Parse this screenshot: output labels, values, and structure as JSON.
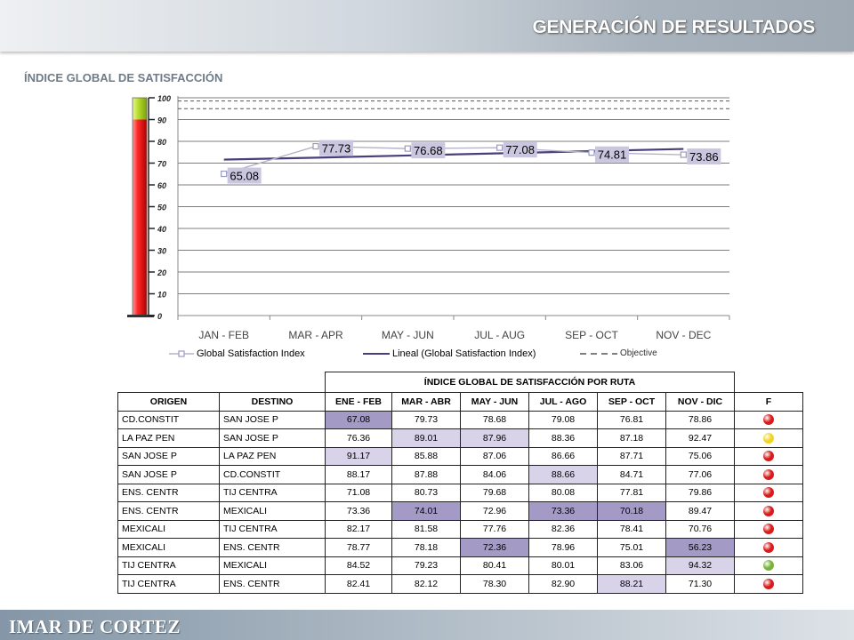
{
  "header": {
    "title": "GENERACIÓN DE RESULTADOS"
  },
  "section": {
    "title": "ÍNDICE GLOBAL DE SATISFACCIÓN"
  },
  "colors": {
    "series_line": "#b4b4c8",
    "series_marker": "#9a9ac0",
    "data_label_bg": "#cbc6e0",
    "trend_line": "#4a3d7c",
    "objective_line": "#555555",
    "status_red": "#d81c1c",
    "status_yellow": "#f2d520",
    "status_green": "#78b43a"
  },
  "chart_data": {
    "type": "line",
    "categories": [
      "JAN - FEB",
      "MAR - APR",
      "MAY - JUN",
      "JUL - AUG",
      "SEP - OCT",
      "NOV - DEC"
    ],
    "series": [
      {
        "name": "Global Satisfaction Index",
        "values": [
          65.08,
          77.73,
          76.68,
          77.08,
          74.81,
          73.86
        ],
        "data_labels": [
          "65.08",
          "77.73",
          "76.68",
          "77.08",
          "74.81",
          "73.86"
        ]
      },
      {
        "name": "Lineal (Global Satisfaction Index)",
        "values": [
          71.6,
          72.5,
          73.5,
          74.5,
          75.5,
          76.5
        ]
      },
      {
        "name": "Objective",
        "values": [
          95,
          95,
          95,
          95,
          95,
          95
        ]
      }
    ],
    "reference_line": 98.5,
    "ylim": [
      0,
      100
    ],
    "y_ticks": [
      "0",
      "10",
      "20",
      "30",
      "40",
      "50",
      "60",
      "70",
      "80",
      "90",
      "100"
    ],
    "grid": true,
    "legend": "bottom",
    "thermometer": {
      "red_max": 90,
      "green_min": 90,
      "green_max": 100
    }
  },
  "table": {
    "title": "ÍNDICE GLOBAL DE SATISFACCIÓN POR RUTA",
    "headers": [
      "ORIGEN",
      "DESTINO",
      "ENE - FEB",
      "MAR - ABR",
      "MAY - JUN",
      "JUL - AGO",
      "SEP - OCT",
      "NOV - DIC",
      "F"
    ],
    "rows": [
      {
        "origen": "CD.CONSTIT",
        "destino": "SAN JOSE P",
        "values": [
          "67.08",
          "79.73",
          "78.68",
          "79.08",
          "76.81",
          "78.86"
        ],
        "status": "red"
      },
      {
        "origen": "LA PAZ PEN",
        "destino": "SAN JOSE P",
        "values": [
          "76.36",
          "89.01",
          "87.96",
          "88.36",
          "87.18",
          "92.47"
        ],
        "status": "yellow"
      },
      {
        "origen": "SAN JOSE P",
        "destino": "LA PAZ PEN",
        "values": [
          "91.17",
          "85.88",
          "87.06",
          "86.66",
          "87.71",
          "75.06"
        ],
        "status": "red"
      },
      {
        "origen": "SAN JOSE P",
        "destino": "CD.CONSTIT",
        "values": [
          "88.17",
          "87.88",
          "84.06",
          "88.66",
          "84.71",
          "77.06"
        ],
        "status": "red"
      },
      {
        "origen": "ENS. CENTR",
        "destino": "TIJ CENTRA",
        "values": [
          "71.08",
          "80.73",
          "79.68",
          "80.08",
          "77.81",
          "79.86"
        ],
        "status": "red"
      },
      {
        "origen": "ENS. CENTR",
        "destino": "MEXICALI",
        "values": [
          "73.36",
          "74.01",
          "72.96",
          "73.36",
          "70.18",
          "89.47"
        ],
        "status": "red"
      },
      {
        "origen": "MEXICALI",
        "destino": "TIJ CENTRA",
        "values": [
          "82.17",
          "81.58",
          "77.76",
          "82.36",
          "78.41",
          "70.76"
        ],
        "status": "red"
      },
      {
        "origen": "MEXICALI",
        "destino": "ENS. CENTR",
        "values": [
          "78.77",
          "78.18",
          "72.36",
          "78.96",
          "75.01",
          "56.23"
        ],
        "status": "red"
      },
      {
        "origen": "TIJ CENTRA",
        "destino": "MEXICALI",
        "values": [
          "84.52",
          "79.23",
          "80.41",
          "80.01",
          "83.06",
          "94.32"
        ],
        "status": "green"
      },
      {
        "origen": "TIJ CENTRA",
        "destino": "ENS. CENTR",
        "values": [
          "82.41",
          "82.12",
          "78.30",
          "82.90",
          "88.21",
          "71.30"
        ],
        "status": "red"
      }
    ],
    "highlights": [
      [
        "dark",
        "",
        "",
        "",
        "",
        ""
      ],
      [
        "",
        "light",
        "light",
        "",
        "",
        ""
      ],
      [
        "light",
        "",
        "",
        "",
        "",
        ""
      ],
      [
        "",
        "",
        "",
        "light",
        "",
        ""
      ],
      [
        "",
        "",
        "",
        "",
        "",
        ""
      ],
      [
        "",
        "dark",
        "",
        "dark",
        "dark",
        ""
      ],
      [
        "",
        "",
        "",
        "",
        "",
        ""
      ],
      [
        "",
        "",
        "dark",
        "",
        "",
        "dark"
      ],
      [
        "",
        "",
        "",
        "",
        "",
        "light"
      ],
      [
        "",
        "",
        "",
        "",
        "light",
        ""
      ]
    ]
  },
  "footer": {
    "logo_text": "IMAR DE CORTEZ"
  }
}
